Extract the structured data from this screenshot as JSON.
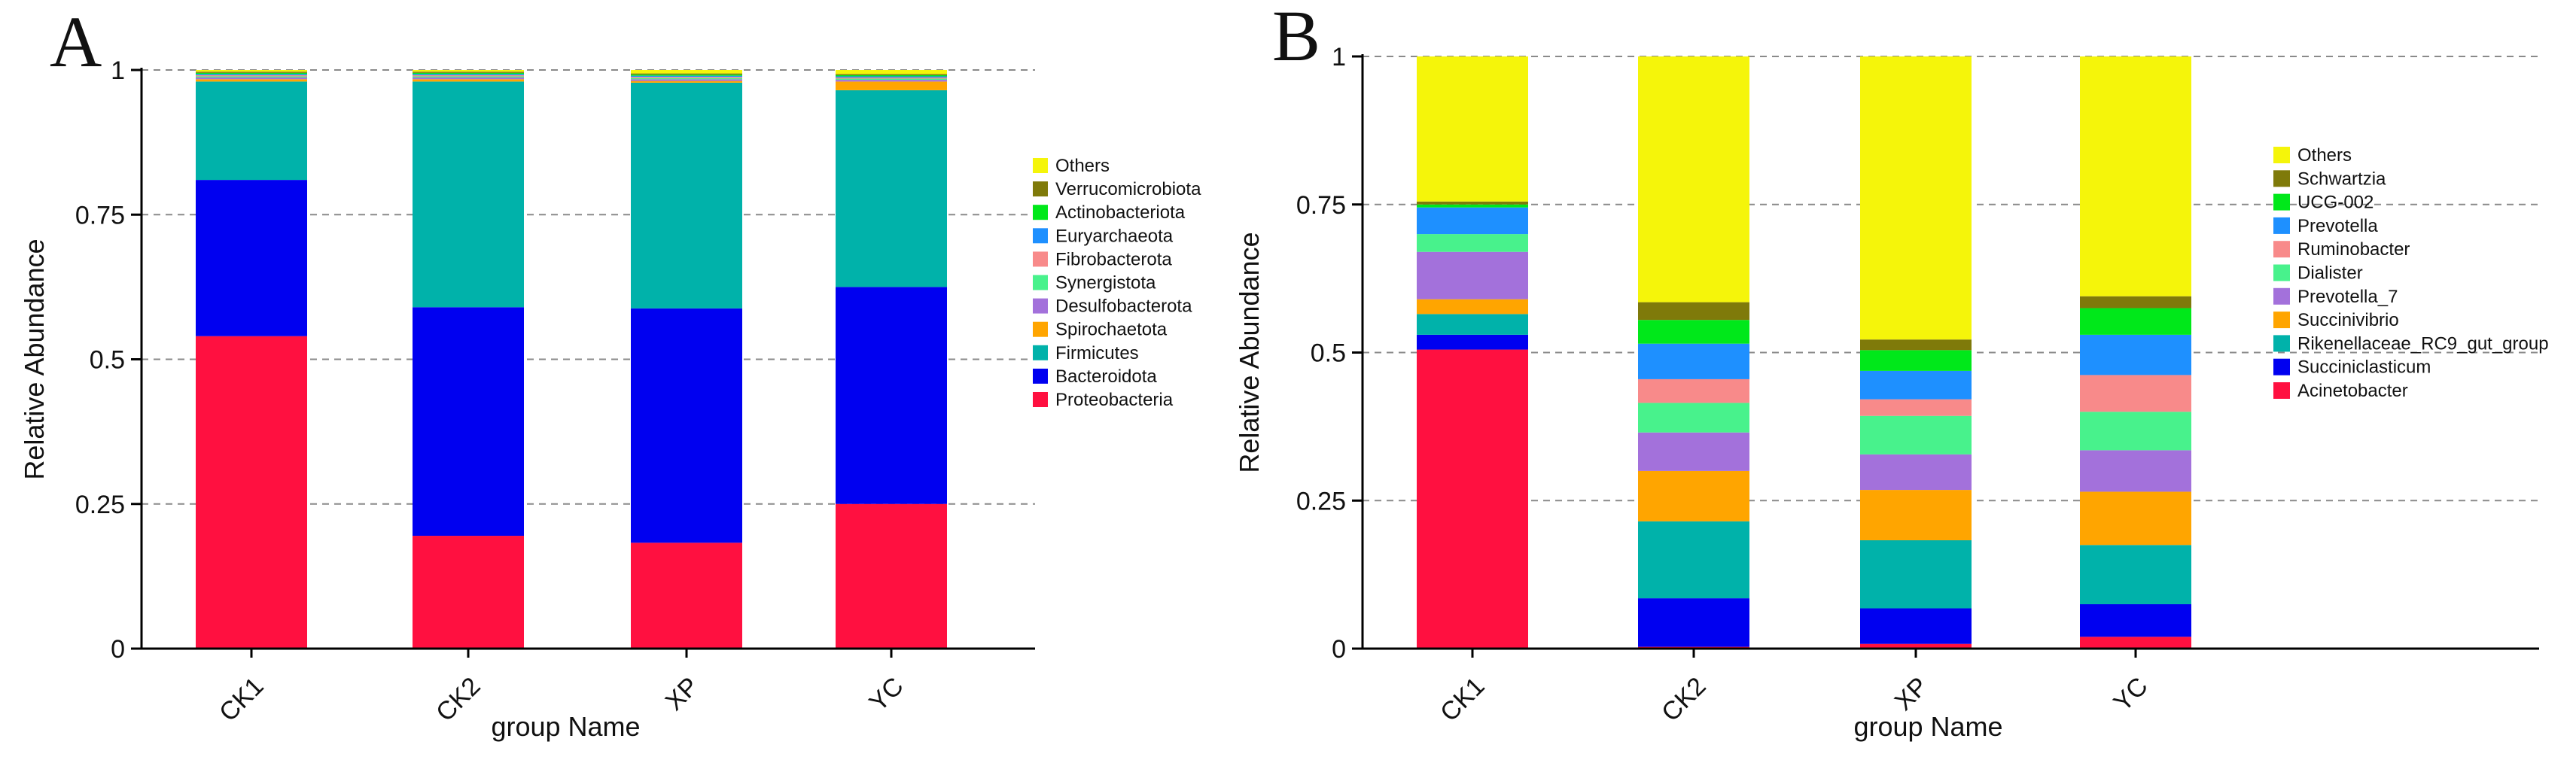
{
  "chart_data": [
    {
      "panel": "A",
      "type": "bar",
      "stacked": true,
      "xlabel": "group Name",
      "ylabel": "Relative Abundance",
      "ylim": [
        0,
        1
      ],
      "yticks": [
        "0",
        "0.25",
        "0.5",
        "0.75",
        "1"
      ],
      "categories": [
        "CK1",
        "CK2",
        "XP",
        "YC"
      ],
      "legend_position": "right",
      "series": [
        {
          "name": "Proteobacteria",
          "color": "#FF1040",
          "values": [
            0.54,
            0.195,
            0.183,
            0.25
          ]
        },
        {
          "name": "Bacteroidota",
          "color": "#0000F0",
          "values": [
            0.27,
            0.395,
            0.405,
            0.375
          ]
        },
        {
          "name": "Firmicutes",
          "color": "#00B2AA",
          "values": [
            0.17,
            0.39,
            0.39,
            0.34
          ]
        },
        {
          "name": "Spirochaetota",
          "color": "#FFA500",
          "values": [
            0.004,
            0.004,
            0.003,
            0.015
          ]
        },
        {
          "name": "Desulfobacterota",
          "color": "#A371DB",
          "values": [
            0.003,
            0.003,
            0.003,
            0.003
          ]
        },
        {
          "name": "Synergistota",
          "color": "#48F28C",
          "values": [
            0.002,
            0.002,
            0.002,
            0.002
          ]
        },
        {
          "name": "Fibrobacterota",
          "color": "#F88A8A",
          "values": [
            0.002,
            0.002,
            0.002,
            0.002
          ]
        },
        {
          "name": "Euryarchaeota",
          "color": "#1E90FF",
          "values": [
            0.002,
            0.002,
            0.002,
            0.002
          ]
        },
        {
          "name": "Actinobacteriota",
          "color": "#00E81A",
          "values": [
            0.002,
            0.002,
            0.002,
            0.002
          ]
        },
        {
          "name": "Verrucomicrobiota",
          "color": "#7F7A0A",
          "values": [
            0.002,
            0.002,
            0.002,
            0.002
          ]
        },
        {
          "name": "Others",
          "color": "#F5F50A",
          "values": [
            0.003,
            0.003,
            0.006,
            0.007
          ]
        }
      ]
    },
    {
      "panel": "B",
      "type": "bar",
      "stacked": true,
      "xlabel": "group Name",
      "ylabel": "Relative Abundance",
      "ylim": [
        0,
        1
      ],
      "yticks": [
        "0",
        "0.25",
        "0.5",
        "0.75",
        "1"
      ],
      "categories": [
        "CK1",
        "CK2",
        "XP",
        "YC"
      ],
      "legend_position": "right",
      "series": [
        {
          "name": "Acinetobacter",
          "color": "#FF1040",
          "values": [
            0.505,
            0.003,
            0.008,
            0.02
          ]
        },
        {
          "name": "Succiniclasticum",
          "color": "#0000F0",
          "values": [
            0.025,
            0.082,
            0.06,
            0.055
          ]
        },
        {
          "name": "Rikenellaceae_RC9_gut_group",
          "color": "#00B2AA",
          "values": [
            0.035,
            0.13,
            0.115,
            0.1
          ]
        },
        {
          "name": "Succinivibrio",
          "color": "#FFA500",
          "values": [
            0.025,
            0.085,
            0.085,
            0.09
          ]
        },
        {
          "name": "Prevotella_7",
          "color": "#A371DB",
          "values": [
            0.08,
            0.065,
            0.06,
            0.07
          ]
        },
        {
          "name": "Dialister",
          "color": "#48F28C",
          "values": [
            0.03,
            0.05,
            0.065,
            0.065
          ]
        },
        {
          "name": "Ruminobacter",
          "color": "#F88A8A",
          "values": [
            0.0,
            0.04,
            0.028,
            0.062
          ]
        },
        {
          "name": "Prevotella",
          "color": "#1E90FF",
          "values": [
            0.045,
            0.06,
            0.048,
            0.068
          ]
        },
        {
          "name": "UCG-002",
          "color": "#00E81A",
          "values": [
            0.005,
            0.04,
            0.035,
            0.045
          ]
        },
        {
          "name": "Schwartzia",
          "color": "#7F7A0A",
          "values": [
            0.005,
            0.03,
            0.018,
            0.02
          ]
        },
        {
          "name": "Others",
          "color": "#F5F50A",
          "values": [
            0.245,
            0.415,
            0.478,
            0.405
          ]
        }
      ]
    }
  ]
}
